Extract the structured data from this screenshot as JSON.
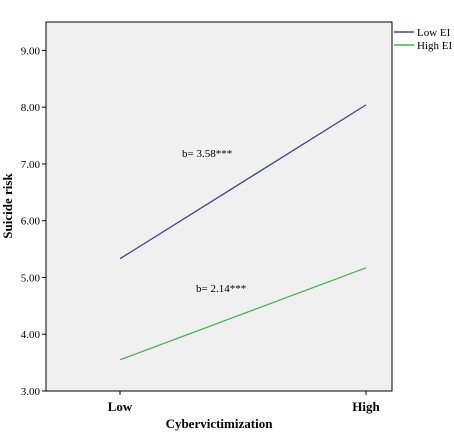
{
  "chart_data": {
    "type": "line",
    "categories": [
      "Low",
      "High"
    ],
    "series": [
      {
        "name": "Low EI",
        "values": [
          5.33,
          8.04
        ],
        "color": "#3a4a8c"
      },
      {
        "name": "High EI",
        "values": [
          3.55,
          5.17
        ],
        "color": "#4caf50"
      }
    ],
    "xlabel": "Cybervictimization",
    "ylabel": "Suicide risk",
    "ylim": [
      3.0,
      9.5
    ],
    "yticks": [
      3.0,
      4.0,
      5.0,
      6.0,
      7.0,
      8.0,
      9.0
    ],
    "ytick_labels": [
      "3.00",
      "4.00",
      "5.00",
      "6.00",
      "7.00",
      "8.00",
      "9.00"
    ],
    "annotations": [
      {
        "text": "b= 3.58***",
        "series": "Low EI"
      },
      {
        "text": "b= 2.14***",
        "series": "High EI"
      }
    ],
    "plot_background": "#f0f0f0",
    "grid": false,
    "legend_position": "top-right outside"
  }
}
